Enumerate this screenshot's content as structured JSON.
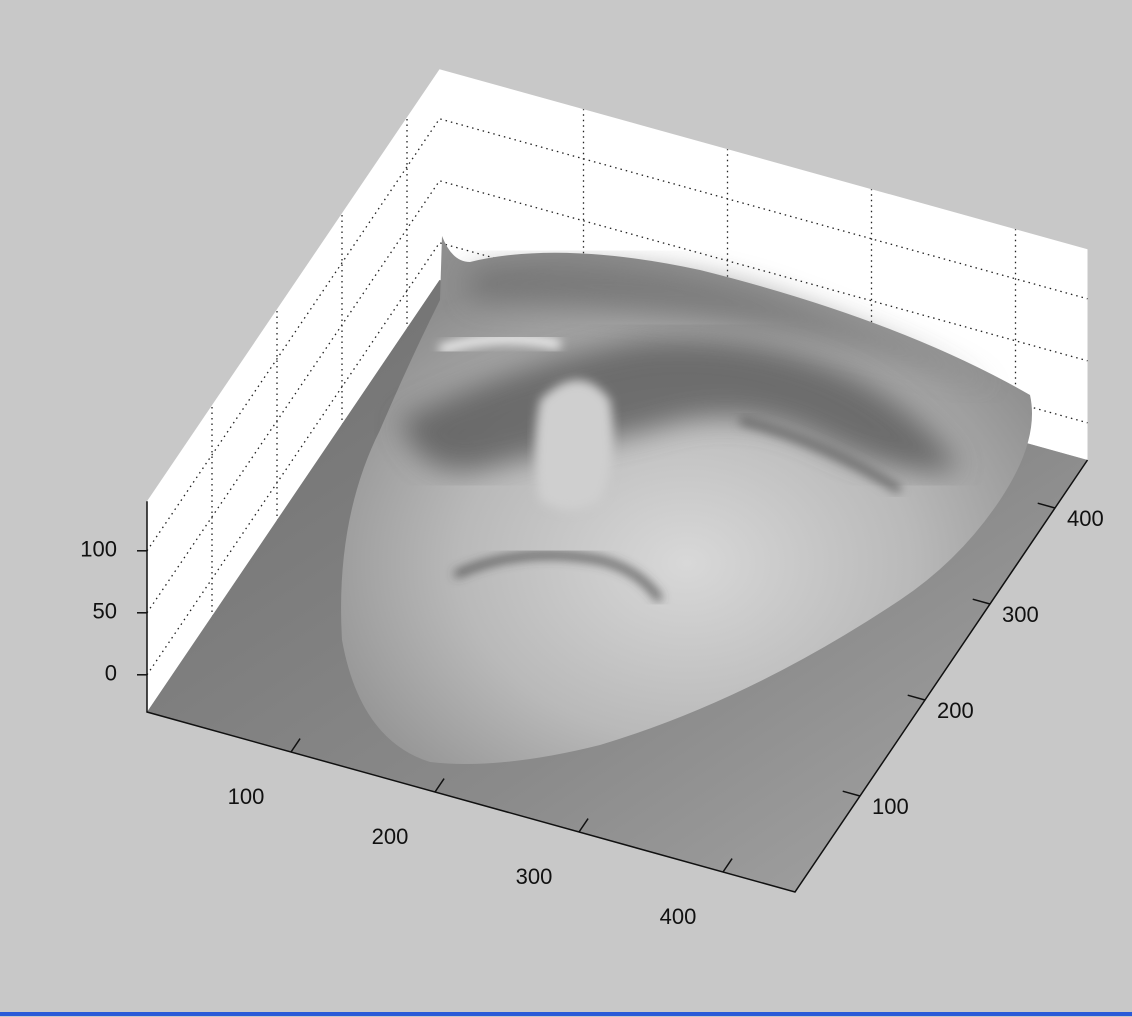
{
  "chart_data": {
    "type": "surface",
    "xlim": [
      0,
      450
    ],
    "ylim": [
      0,
      450
    ],
    "zlim": [
      -30,
      140
    ],
    "xticks": [
      100,
      200,
      300,
      400
    ],
    "yticks": [
      100,
      200,
      300,
      400
    ],
    "zticks": [
      0,
      50,
      100
    ],
    "grid": true
  }
}
